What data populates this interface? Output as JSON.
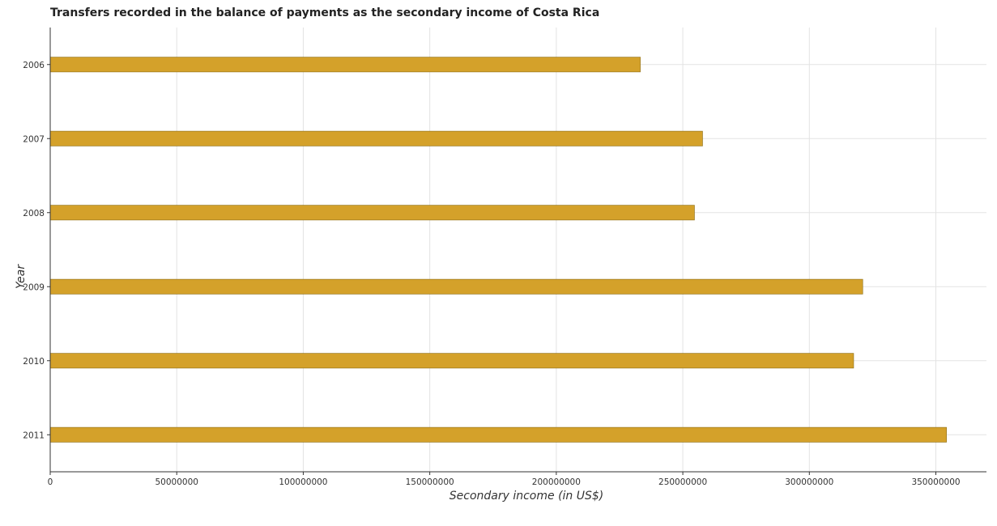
{
  "chart_data": {
    "type": "bar",
    "orientation": "horizontal",
    "title": "Transfers recorded in the balance of payments as the secondary income of Costa Rica",
    "xlabel": "Secondary income (in US$)",
    "ylabel": "Year",
    "categories": [
      "2006",
      "2007",
      "2008",
      "2009",
      "2010",
      "2011"
    ],
    "values": [
      233200000,
      257800000,
      254600000,
      321100000,
      317500000,
      354200000
    ],
    "xlim": [
      0,
      370000000
    ],
    "xticks": [
      0,
      50000000,
      100000000,
      150000000,
      200000000,
      250000000,
      300000000,
      350000000
    ],
    "xtick_labels": [
      "0",
      "50000000",
      "100000000",
      "150000000",
      "200000000",
      "250000000",
      "300000000",
      "350000000"
    ],
    "grid": true,
    "bar_color": "#d4a12a",
    "bar_edge_color": "#8a6a10"
  }
}
